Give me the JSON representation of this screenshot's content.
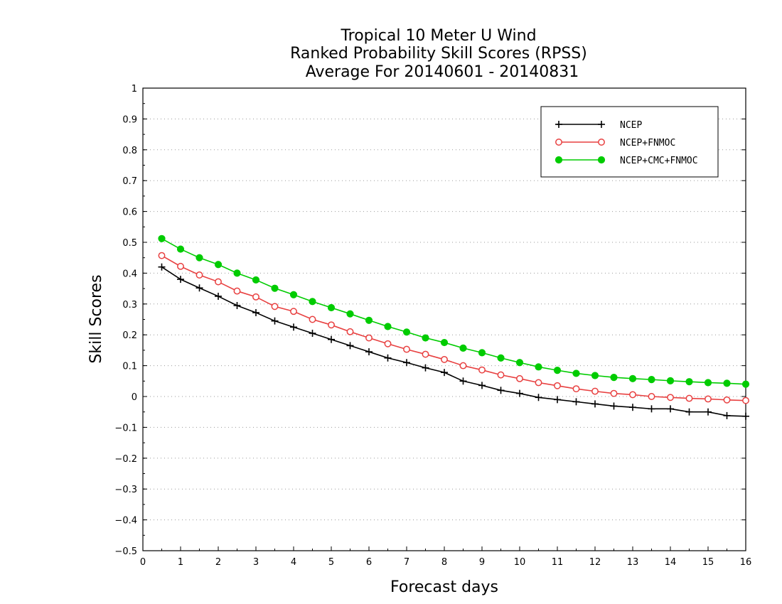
{
  "chart_data": {
    "type": "line",
    "title": "Tropical 10 Meter U Wind",
    "subtitle": [
      "Ranked Probability Skill Scores (RPSS)",
      "Average For 20140601 - 20140831"
    ],
    "xlabel": "Forecast days",
    "ylabel": "Skill Scores",
    "xlim": [
      0,
      16
    ],
    "ylim": [
      -0.5,
      1
    ],
    "xticks": [
      "0",
      "1",
      "2",
      "3",
      "4",
      "5",
      "6",
      "7",
      "8",
      "9",
      "10",
      "11",
      "12",
      "13",
      "14",
      "15",
      "16"
    ],
    "yticks": [
      "−0.5",
      "−0.4",
      "−0.3",
      "−0.2",
      "−0.1",
      "0",
      "0.1",
      "0.2",
      "0.3",
      "0.4",
      "0.5",
      "0.6",
      "0.7",
      "0.8",
      "0.9",
      "1"
    ],
    "ytick_values": [
      -0.5,
      -0.4,
      -0.3,
      -0.2,
      -0.1,
      0,
      0.1,
      0.2,
      0.3,
      0.4,
      0.5,
      0.6,
      0.7,
      0.8,
      0.9,
      1
    ],
    "grid": true,
    "legend_position": "top-right",
    "x": [
      0.5,
      1,
      1.5,
      2,
      2.5,
      3,
      3.5,
      4,
      4.5,
      5,
      5.5,
      6,
      6.5,
      7,
      7.5,
      8,
      8.5,
      9,
      9.5,
      10,
      10.5,
      11,
      11.5,
      12,
      12.5,
      13,
      13.5,
      14,
      14.5,
      15,
      15.5,
      16
    ],
    "series": [
      {
        "name": "NCEP",
        "color": "#000000",
        "marker": "plus",
        "values": [
          0.42,
          0.38,
          0.352,
          0.325,
          0.295,
          0.272,
          0.245,
          0.225,
          0.205,
          0.185,
          0.165,
          0.145,
          0.125,
          0.11,
          0.093,
          0.078,
          0.05,
          0.036,
          0.02,
          0.01,
          -0.003,
          -0.01,
          -0.017,
          -0.024,
          -0.031,
          -0.035,
          -0.04,
          -0.04,
          -0.05,
          -0.05,
          -0.062,
          -0.064
        ]
      },
      {
        "name": "NCEP+FNMOC",
        "color": "#e84040",
        "marker": "open-circle",
        "values": [
          0.457,
          0.422,
          0.394,
          0.372,
          0.342,
          0.323,
          0.292,
          0.276,
          0.25,
          0.232,
          0.21,
          0.19,
          0.171,
          0.153,
          0.137,
          0.12,
          0.1,
          0.086,
          0.07,
          0.058,
          0.045,
          0.035,
          0.025,
          0.017,
          0.01,
          0.006,
          0.0,
          -0.003,
          -0.006,
          -0.008,
          -0.011,
          -0.013
        ]
      },
      {
        "name": "NCEP+CMC+FNMOC",
        "color": "#00cc00",
        "marker": "filled-circle",
        "values": [
          0.512,
          0.478,
          0.45,
          0.428,
          0.4,
          0.378,
          0.351,
          0.33,
          0.308,
          0.288,
          0.268,
          0.247,
          0.227,
          0.209,
          0.19,
          0.175,
          0.157,
          0.142,
          0.125,
          0.11,
          0.096,
          0.085,
          0.075,
          0.068,
          0.062,
          0.058,
          0.055,
          0.051,
          0.048,
          0.045,
          0.043,
          0.04
        ]
      }
    ]
  }
}
